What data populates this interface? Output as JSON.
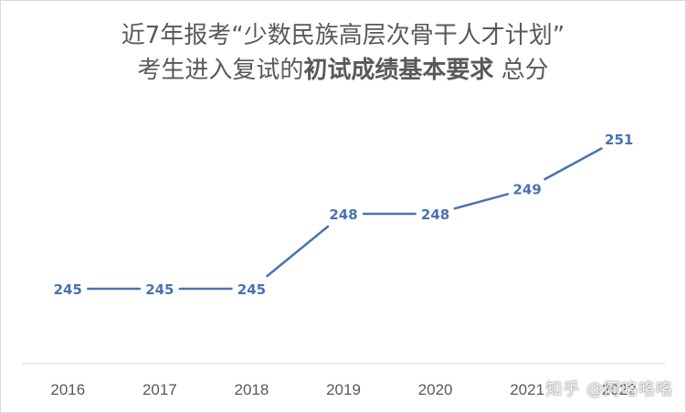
{
  "title": {
    "line1": "近7年报考“少数民族高层次骨干人才计划”",
    "line2_prefix": "考生进入复试的",
    "line2_bold": "初试成绩基本要求",
    "line2_suffix": " 总分"
  },
  "watermark": "知乎 @阿咯咯咯",
  "colors": {
    "line": "#4a72b0",
    "label": "#4a72b0",
    "axis": "#d9d9d9",
    "tick": "#595959"
  },
  "chart_data": {
    "type": "line",
    "title": "近7年报考“少数民族高层次骨干人才计划”考生进入复试的初试成绩基本要求 总分",
    "categories": [
      "2016",
      "2017",
      "2018",
      "2019",
      "2020",
      "2021",
      "2022"
    ],
    "values": [
      245,
      245,
      245,
      248,
      248,
      249,
      251
    ],
    "data_labels": [
      "245",
      "245",
      "245",
      "248",
      "248",
      "249",
      "251"
    ],
    "grid": false,
    "legend": "none",
    "xlabel": "",
    "ylabel": ""
  }
}
